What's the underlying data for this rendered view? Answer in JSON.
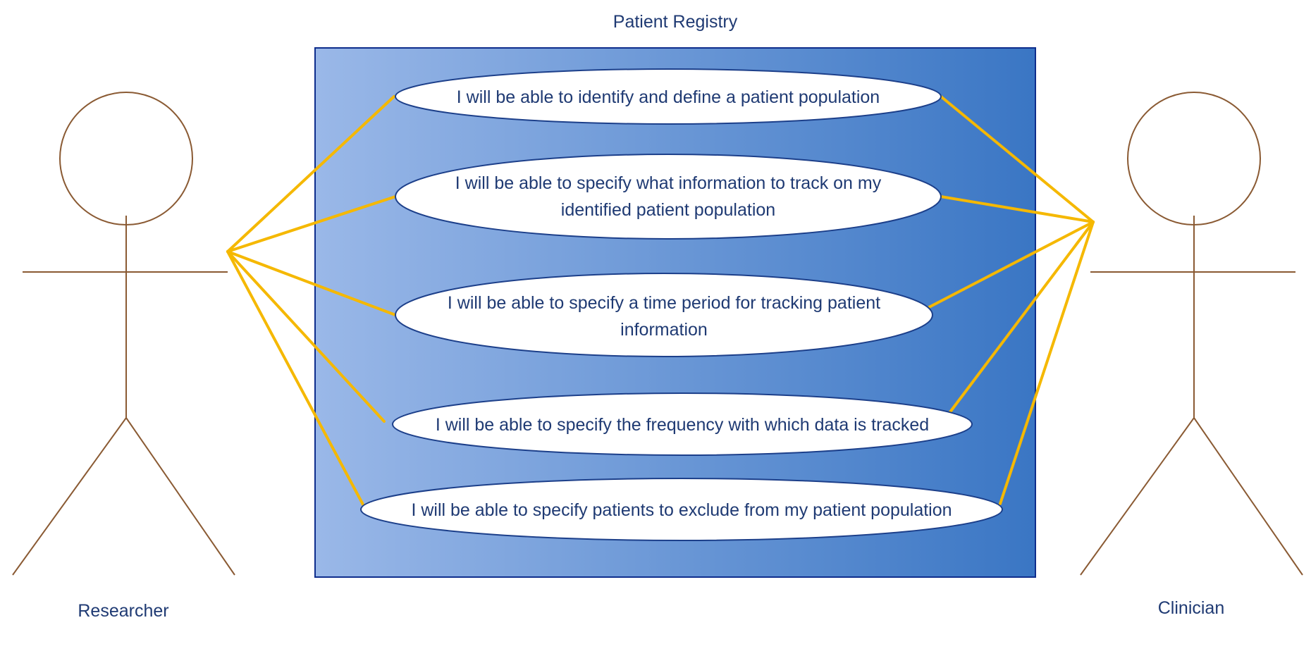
{
  "system": {
    "title": "Patient Registry"
  },
  "actors": [
    {
      "id": "researcher",
      "name": "Researcher"
    },
    {
      "id": "clinician",
      "name": "Clinician"
    }
  ],
  "use_cases": [
    {
      "id": "uc1",
      "lines": [
        "I will be able to identify and define a patient population"
      ]
    },
    {
      "id": "uc2",
      "lines": [
        "I will be able to specify what information to track on my",
        "identified patient population"
      ]
    },
    {
      "id": "uc3",
      "lines": [
        "I will be able to specify a time period for tracking patient",
        "information"
      ]
    },
    {
      "id": "uc4",
      "lines": [
        "I will be able to specify the frequency with which data is tracked"
      ]
    },
    {
      "id": "uc5",
      "lines": [
        "I will be able to specify patients to exclude from my patient population"
      ]
    }
  ],
  "associations": [
    {
      "actor": "researcher",
      "use_case": "uc1"
    },
    {
      "actor": "researcher",
      "use_case": "uc2"
    },
    {
      "actor": "researcher",
      "use_case": "uc3"
    },
    {
      "actor": "researcher",
      "use_case": "uc4"
    },
    {
      "actor": "researcher",
      "use_case": "uc5"
    },
    {
      "actor": "clinician",
      "use_case": "uc1"
    },
    {
      "actor": "clinician",
      "use_case": "uc2"
    },
    {
      "actor": "clinician",
      "use_case": "uc3"
    },
    {
      "actor": "clinician",
      "use_case": "uc4"
    },
    {
      "actor": "clinician",
      "use_case": "uc5"
    }
  ],
  "colors": {
    "text": "#1f3a73",
    "actor_stroke": "#8a5a33",
    "association": "#f5b800",
    "system_gradient_start": "#9ab8e8",
    "system_gradient_end": "#3a76c4",
    "system_border": "#0e2d8c",
    "ellipse_border": "#1c3f8a"
  }
}
